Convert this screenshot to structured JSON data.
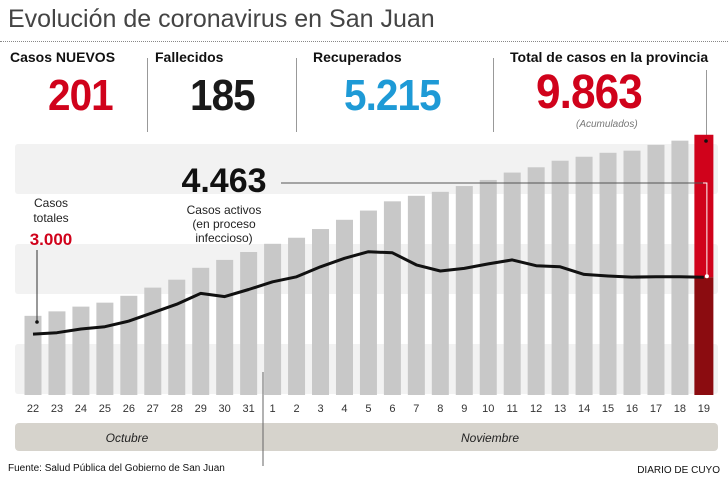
{
  "title": "Evolución de coronavirus en San Juan",
  "stats": {
    "new_cases": {
      "label": "Casos NUEVOS",
      "value": "201",
      "color": "#d0021b"
    },
    "deaths": {
      "label": "Fallecidos",
      "value": "185",
      "color": "#1a1a1a"
    },
    "recovered": {
      "label": "Recuperados",
      "value": "5.215",
      "color": "#1e9ad6"
    },
    "total": {
      "label": "Total de casos en la provincia",
      "value": "9.863",
      "note": "(Acumulados)",
      "color": "#d0021b"
    }
  },
  "annotations": {
    "total_start_label_1": "Casos",
    "total_start_label_2": "totales",
    "total_start_value": "3.000",
    "active_value": "4.463",
    "active_label_1": "Casos activos",
    "active_label_2": "(en proceso",
    "active_label_3": "infeccioso)"
  },
  "months": {
    "october": "Octubre",
    "november": "Noviembre"
  },
  "chart_data": {
    "type": "bar",
    "categories": [
      "22",
      "23",
      "24",
      "25",
      "26",
      "27",
      "28",
      "29",
      "30",
      "31",
      "1",
      "2",
      "3",
      "4",
      "5",
      "6",
      "7",
      "8",
      "9",
      "10",
      "11",
      "12",
      "13",
      "14",
      "15",
      "16",
      "17",
      "18",
      "19"
    ],
    "series": [
      {
        "name": "Casos totales",
        "type": "bar",
        "color": "#c8c8c8",
        "highlight_color": "#d0021b",
        "values": [
          3000,
          3170,
          3350,
          3500,
          3760,
          4070,
          4370,
          4820,
          5120,
          5420,
          5730,
          5960,
          6290,
          6640,
          6990,
          7340,
          7550,
          7700,
          7920,
          8150,
          8430,
          8630,
          8880,
          9030,
          9180,
          9260,
          9480,
          9640,
          9863
        ]
      },
      {
        "name": "Casos activos",
        "type": "line",
        "color": "#111111",
        "values": [
          2310,
          2360,
          2500,
          2590,
          2800,
          3120,
          3440,
          3850,
          3730,
          4000,
          4290,
          4480,
          4860,
          5180,
          5430,
          5390,
          4930,
          4700,
          4800,
          4970,
          5120,
          4900,
          4860,
          4570,
          4510,
          4470,
          4480,
          4480,
          4463
        ]
      }
    ],
    "ylim": [
      0,
      10000
    ],
    "grid": "alternating bands"
  },
  "footer": {
    "source": "Fuente: Salud Pública del Gobierno de San Juan",
    "brand": "DIARIO DE CUYO"
  }
}
